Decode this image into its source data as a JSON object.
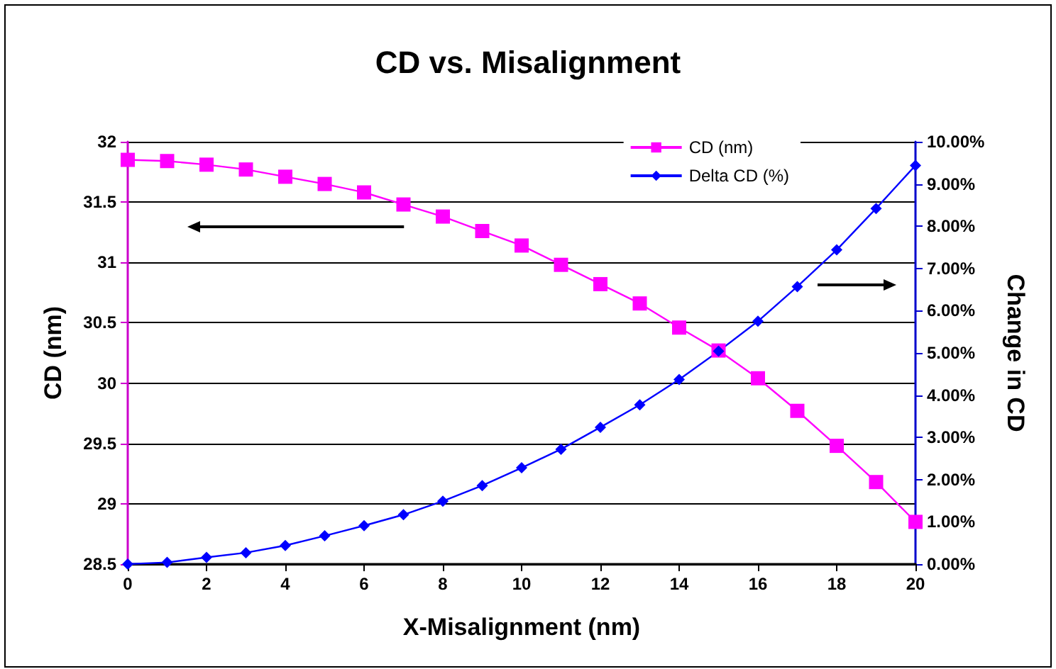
{
  "chart_data": {
    "type": "line",
    "title": "CD vs. Misalignment",
    "xlabel": "X-Misalignment (nm)",
    "ylabel": "CD (nm)",
    "y2label": "Change in CD",
    "x": [
      0,
      1,
      2,
      3,
      4,
      5,
      6,
      7,
      8,
      9,
      10,
      11,
      12,
      13,
      14,
      15,
      16,
      17,
      18,
      19,
      20
    ],
    "series": [
      {
        "name": "CD (nm)",
        "color": "#ff00ff",
        "marker": "square",
        "values": [
          31.85,
          31.84,
          31.81,
          31.77,
          31.71,
          31.65,
          31.58,
          31.48,
          31.38,
          31.26,
          31.14,
          30.98,
          30.82,
          30.66,
          30.46,
          30.27,
          30.04,
          29.77,
          29.48,
          29.18,
          28.85
        ]
      },
      {
        "name": "Delta CD (%)",
        "color": "#0000ff",
        "marker": "diamond",
        "axis": "y2",
        "values": [
          0,
          0.04,
          0.16,
          0.27,
          0.44,
          0.67,
          0.91,
          1.17,
          1.49,
          1.86,
          2.28,
          2.72,
          3.24,
          3.77,
          4.37,
          5.04,
          5.75,
          6.57,
          7.44,
          8.42,
          9.44
        ]
      }
    ],
    "xlim": [
      0,
      20
    ],
    "xticks": [
      0,
      2,
      4,
      6,
      8,
      10,
      12,
      14,
      16,
      18,
      20
    ],
    "ylim": [
      28.5,
      32
    ],
    "yticks": [
      28.5,
      29,
      29.5,
      30,
      30.5,
      31,
      31.5,
      32
    ],
    "y2lim": [
      0,
      10
    ],
    "y2ticks": [
      {
        "value": 0,
        "label": "0.00%"
      },
      {
        "value": 1,
        "label": "1.00%"
      },
      {
        "value": 2,
        "label": "2.00%"
      },
      {
        "value": 3,
        "label": "3.00%"
      },
      {
        "value": 4,
        "label": "4.00%"
      },
      {
        "value": 5,
        "label": "5.00%"
      },
      {
        "value": 6,
        "label": "6.00%"
      },
      {
        "value": 7,
        "label": "7.00%"
      },
      {
        "value": 8,
        "label": "8.00%"
      },
      {
        "value": 9,
        "label": "9.00%"
      },
      {
        "value": 10,
        "label": "10.00%"
      }
    ],
    "grid": "y",
    "legend": "top right",
    "line_style": "solid"
  }
}
